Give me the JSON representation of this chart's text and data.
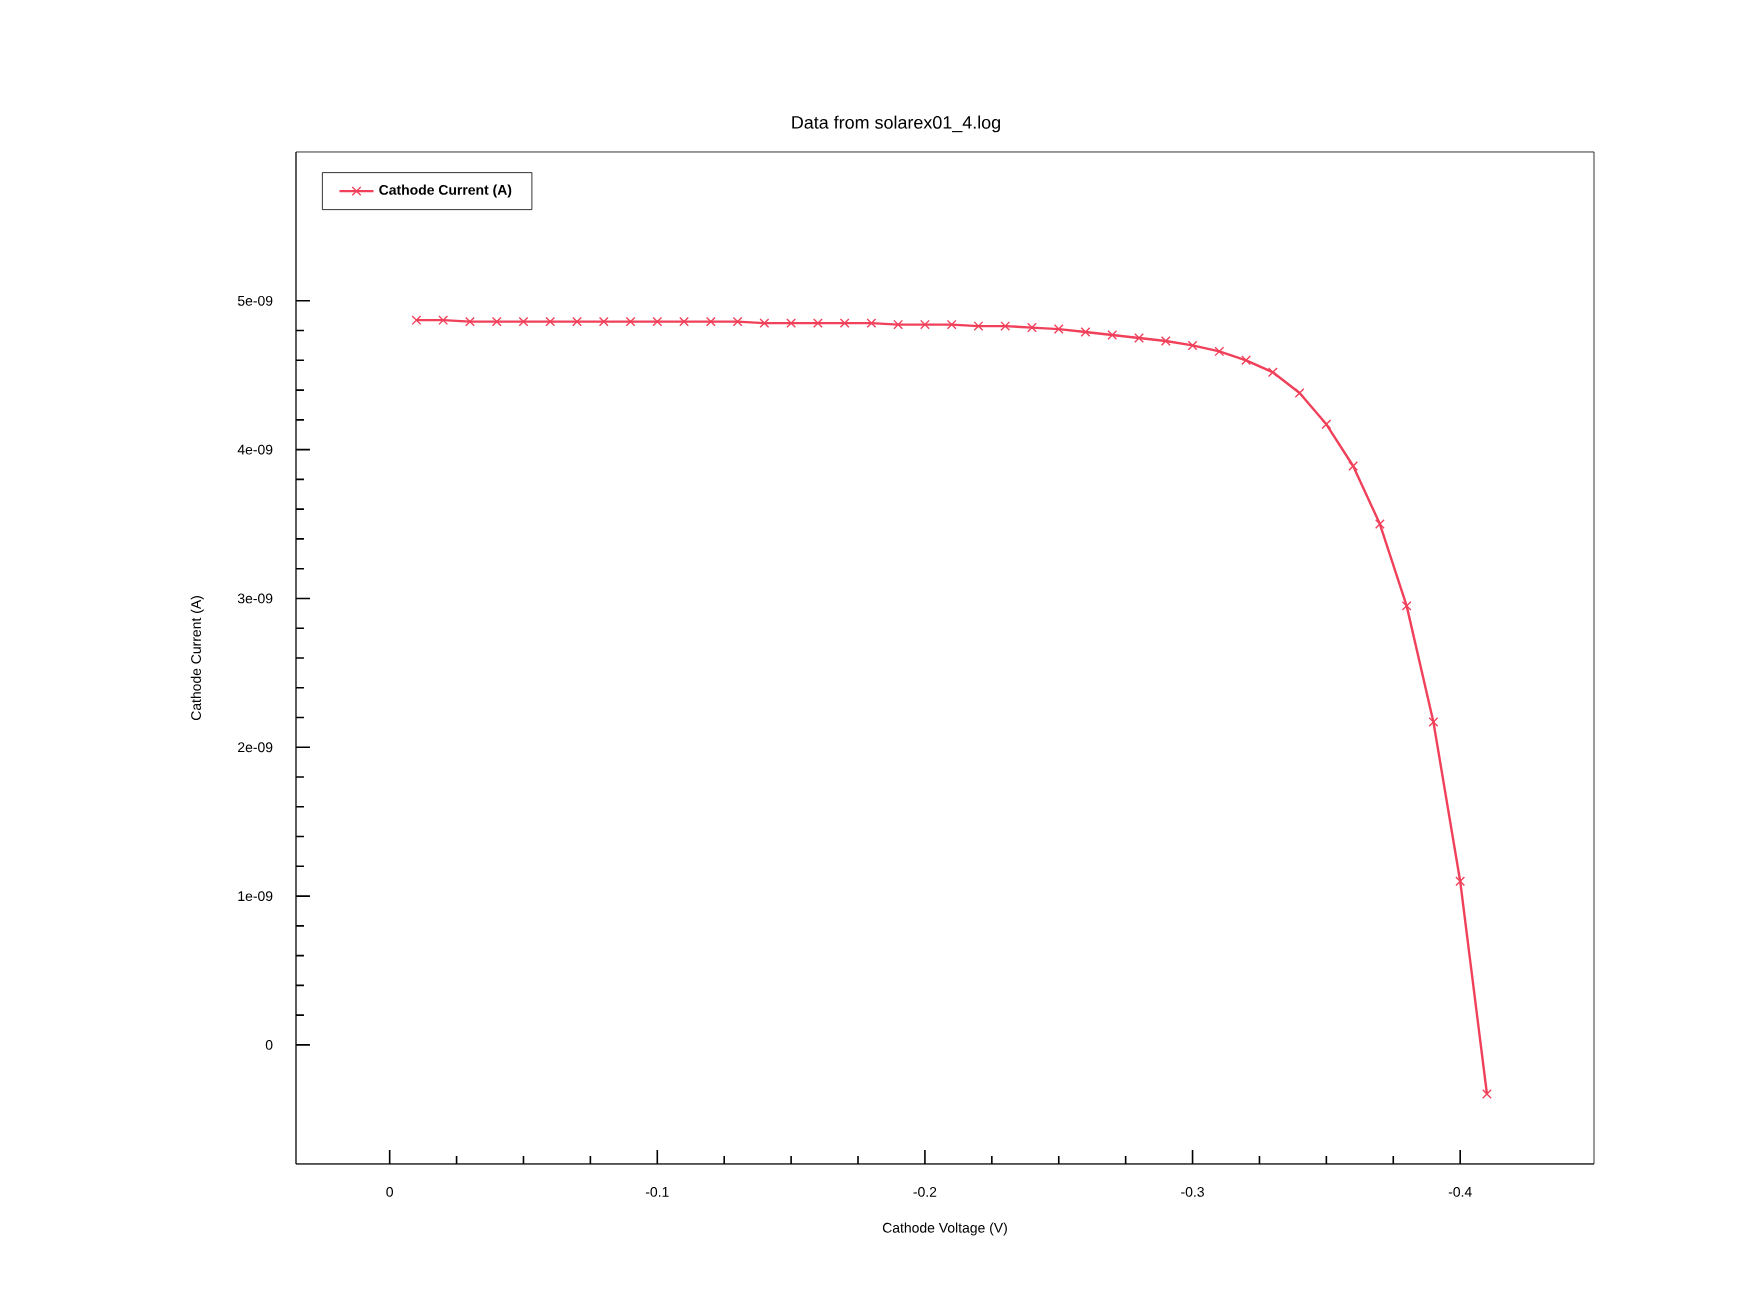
{
  "chart_data": {
    "type": "line",
    "title": "Data from solarex01_4.log",
    "xlabel": "Cathode Voltage (V)",
    "ylabel": "Cathode Current (A)",
    "x": [
      -0.01,
      -0.02,
      -0.03,
      -0.04,
      -0.05,
      -0.06,
      -0.07,
      -0.08,
      -0.09,
      -0.1,
      -0.11,
      -0.12,
      -0.13,
      -0.14,
      -0.15,
      -0.16,
      -0.17,
      -0.18,
      -0.19,
      -0.2,
      -0.21,
      -0.22,
      -0.23,
      -0.24,
      -0.25,
      -0.26,
      -0.27,
      -0.28,
      -0.29,
      -0.3,
      -0.31,
      -0.32,
      -0.33,
      -0.34,
      -0.35,
      -0.36,
      -0.37,
      -0.38,
      -0.39,
      -0.4,
      -0.41
    ],
    "series": [
      {
        "name": "Cathode Current (A)",
        "color": "#f0405a",
        "values": [
          4.87e-09,
          4.87e-09,
          4.86e-09,
          4.86e-09,
          4.86e-09,
          4.86e-09,
          4.86e-09,
          4.86e-09,
          4.86e-09,
          4.86e-09,
          4.86e-09,
          4.86e-09,
          4.86e-09,
          4.85e-09,
          4.85e-09,
          4.85e-09,
          4.85e-09,
          4.85e-09,
          4.84e-09,
          4.84e-09,
          4.84e-09,
          4.83e-09,
          4.83e-09,
          4.82e-09,
          4.81e-09,
          4.79e-09,
          4.77e-09,
          4.75e-09,
          4.73e-09,
          4.7e-09,
          4.66e-09,
          4.6e-09,
          4.52e-09,
          4.38e-09,
          4.17e-09,
          3.89e-09,
          3.5e-09,
          2.95e-09,
          2.17e-09,
          1.1e-09,
          -3.3e-10
        ]
      }
    ],
    "xlim": [
      0.035,
      -0.45
    ],
    "ylim": [
      -8e-10,
      6e-09
    ],
    "xticks": [
      0,
      -0.1,
      -0.2,
      -0.3,
      -0.4
    ],
    "yticks": [
      0,
      {
        "value": 1e-09,
        "label": "1e-09"
      },
      {
        "value": 2e-09,
        "label": "2e-09"
      },
      {
        "value": 3e-09,
        "label": "3e-09"
      },
      {
        "value": 4e-09,
        "label": "4e-09"
      },
      {
        "value": 5e-09,
        "label": "5e-09"
      }
    ],
    "grid": false,
    "legend": "top left",
    "marker": "cross",
    "line_style": "solid"
  }
}
